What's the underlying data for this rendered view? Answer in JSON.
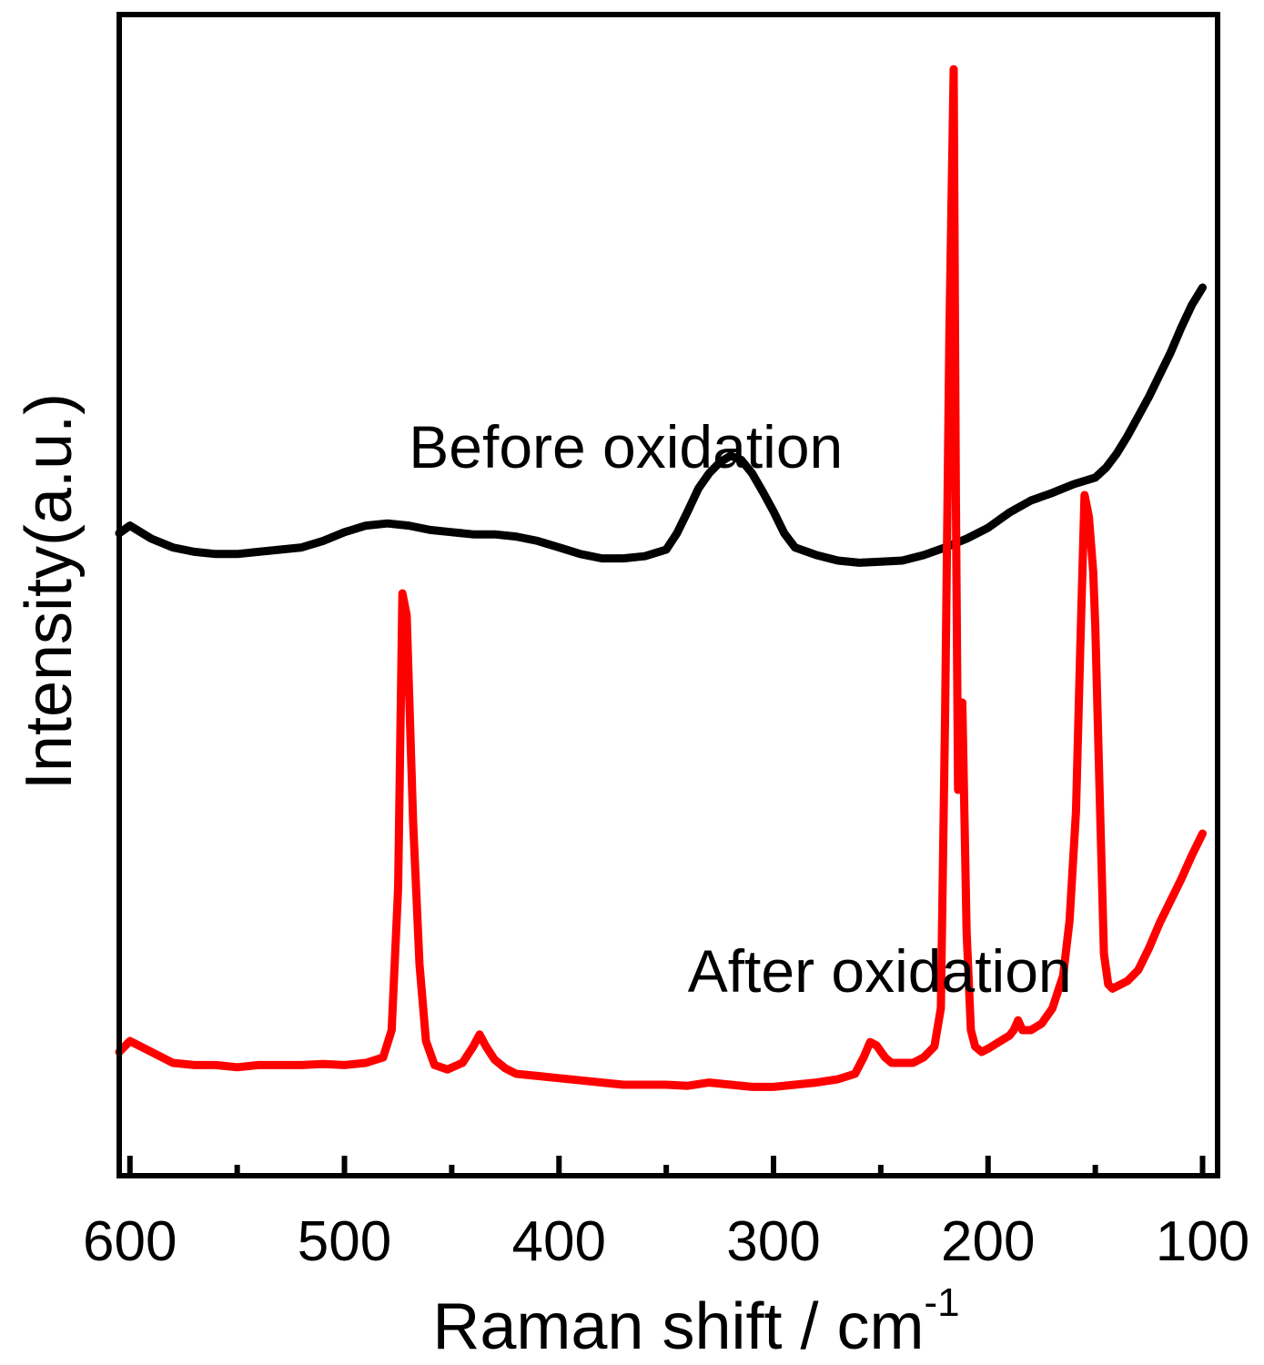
{
  "chart_data": {
    "type": "line",
    "title": "",
    "xlabel": "Raman shift / cm",
    "xlabel_superscript": "-1",
    "ylabel": "Intensity(a.u.)",
    "xlim": [
      605,
      93
    ],
    "ylim": [
      0,
      100
    ],
    "x_reversed": true,
    "x_ticks": [
      600,
      500,
      400,
      300,
      200,
      100
    ],
    "x_minor_ticks": [
      550,
      450,
      350,
      250,
      150
    ],
    "y_ticks": [],
    "grid": false,
    "legend": "none",
    "annotations": [
      {
        "text": "Before oxidation",
        "x": 470,
        "y": 62.5
      },
      {
        "text": "After oxidation",
        "x": 340,
        "y": 14.5
      }
    ],
    "series": [
      {
        "name": "Before oxidation",
        "color": "#000000",
        "x": [
          605,
          600,
          590,
          580,
          570,
          560,
          550,
          540,
          530,
          520,
          510,
          500,
          490,
          480,
          470,
          460,
          450,
          440,
          430,
          420,
          410,
          400,
          390,
          380,
          370,
          360,
          350,
          345,
          340,
          335,
          330,
          325,
          320,
          315,
          310,
          305,
          300,
          295,
          290,
          280,
          270,
          260,
          250,
          240,
          230,
          220,
          210,
          200,
          190,
          180,
          170,
          160,
          150,
          145,
          140,
          135,
          130,
          125,
          120,
          115,
          110,
          105,
          100
        ],
        "values": [
          56.5,
          57.2,
          56.0,
          55.2,
          54.8,
          54.6,
          54.6,
          54.8,
          55.0,
          55.2,
          55.8,
          56.6,
          57.2,
          57.4,
          57.2,
          56.8,
          56.6,
          56.4,
          56.4,
          56.2,
          55.8,
          55.2,
          54.6,
          54.2,
          54.2,
          54.4,
          55.0,
          56.5,
          58.5,
          60.6,
          62.0,
          63.0,
          63.6,
          63.2,
          62.0,
          60.3,
          58.5,
          56.5,
          55.2,
          54.5,
          54.0,
          53.8,
          53.9,
          54.0,
          54.5,
          55.2,
          56.0,
          57.0,
          58.4,
          59.5,
          60.2,
          61.0,
          61.6,
          62.5,
          63.8,
          65.4,
          67.2,
          69.0,
          71.0,
          73.0,
          75.3,
          77.4,
          79.0
        ]
      },
      {
        "name": "After oxidation",
        "color": "#ff0000",
        "x": [
          605,
          600,
          590,
          580,
          570,
          560,
          550,
          540,
          530,
          520,
          510,
          500,
          490,
          482,
          478,
          475,
          473,
          471,
          468,
          465,
          462,
          458,
          452,
          445,
          440,
          437,
          434,
          430,
          425,
          420,
          410,
          400,
          390,
          380,
          370,
          360,
          350,
          340,
          330,
          320,
          310,
          300,
          290,
          280,
          270,
          262,
          258,
          255,
          252,
          248,
          245,
          240,
          235,
          230,
          225,
          222,
          220,
          218,
          216,
          215,
          214,
          213,
          212,
          210,
          208,
          206,
          203,
          200,
          195,
          190,
          188,
          186,
          184,
          180,
          175,
          170,
          165,
          162,
          159,
          157,
          155,
          153,
          151,
          150,
          148,
          146,
          144,
          142,
          140,
          138,
          135,
          130,
          125,
          120,
          115,
          110,
          105,
          100
        ],
        "values": [
          9.0,
          10.0,
          9.0,
          8.0,
          7.8,
          7.8,
          7.6,
          7.8,
          7.8,
          7.8,
          7.9,
          7.8,
          8.0,
          8.5,
          11.0,
          24.0,
          51.0,
          49.0,
          30.0,
          17.0,
          10.0,
          7.8,
          7.4,
          8.0,
          9.5,
          10.6,
          9.5,
          8.3,
          7.5,
          7.0,
          6.8,
          6.6,
          6.4,
          6.2,
          6.0,
          6.0,
          6.0,
          5.9,
          6.2,
          6.0,
          5.8,
          5.8,
          6.0,
          6.2,
          6.5,
          7.0,
          8.5,
          9.9,
          9.6,
          8.5,
          8.0,
          8.0,
          8.0,
          8.5,
          9.5,
          13.0,
          40.0,
          75.0,
          99.0,
          60.0,
          33.0,
          34.0,
          41.0,
          20.0,
          11.0,
          9.5,
          9.0,
          9.3,
          9.9,
          10.5,
          11.0,
          11.9,
          11.0,
          11.0,
          11.6,
          13.0,
          16.0,
          21.0,
          31.0,
          46.0,
          60.0,
          58.0,
          53.0,
          48.0,
          33.0,
          18.0,
          15.2,
          14.8,
          15.0,
          15.2,
          15.5,
          16.5,
          18.5,
          20.8,
          22.8,
          24.8,
          27.0,
          29.0
        ]
      }
    ]
  }
}
